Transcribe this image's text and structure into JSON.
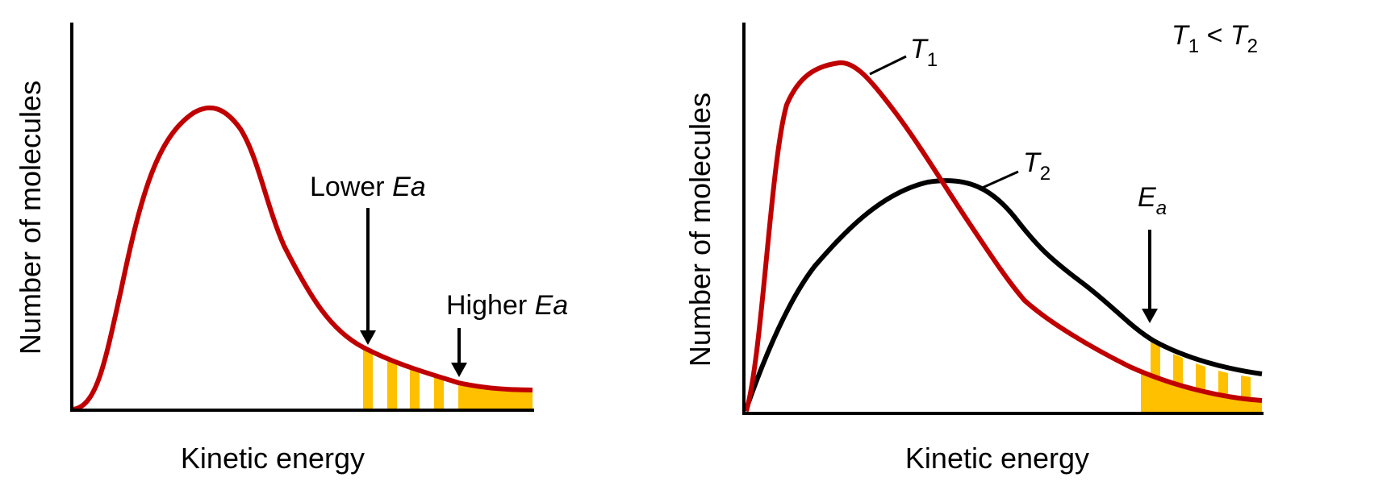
{
  "colors": {
    "curve_red": "#c00000",
    "curve_black": "#000000",
    "shade": "#ffc000",
    "axis": "#000000"
  },
  "left_panel": {
    "xlabel": "Kinetic energy",
    "ylabel": "Number of molecules",
    "lower_ea": {
      "prefix": "Lower ",
      "symbol": "Ea"
    },
    "higher_ea": {
      "prefix": "Higher ",
      "symbol": "Ea"
    }
  },
  "right_panel": {
    "xlabel": "Kinetic energy",
    "ylabel": "Number of molecules",
    "t1": {
      "letter": "T",
      "sub": "1"
    },
    "t2": {
      "letter": "T",
      "sub": "2"
    },
    "relation": {
      "a": "T",
      "a_sub": "1",
      "op": " < ",
      "b": "T",
      "b_sub": "2"
    },
    "ea": {
      "letter": "E",
      "sub": "a"
    }
  }
}
